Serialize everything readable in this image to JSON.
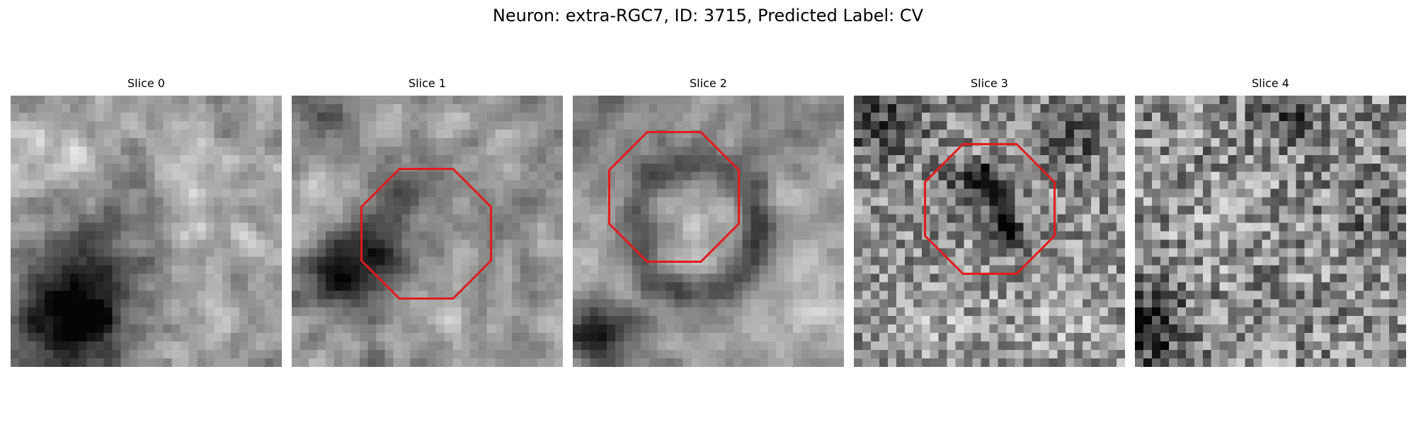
{
  "title": "Neuron: extra-RGC7, ID: 3715, Predicted Label: CV",
  "colormap": "gray",
  "outline_color": "#e41a1c",
  "panels": [
    {
      "title": "Slice 0",
      "has_outline": false,
      "texture": "dark blob lower-left and lower-center, light upper area"
    },
    {
      "title": "Slice 1",
      "has_outline": true,
      "texture": "dark region left-center inside outline, light upper-left"
    },
    {
      "title": "Slice 2",
      "has_outline": true,
      "texture": "dark ring around light center, dark lower-left corner"
    },
    {
      "title": "Slice 3",
      "has_outline": true,
      "texture": "dark diagonal streak inside outline, noisy background"
    },
    {
      "title": "Slice 4",
      "has_outline": false,
      "texture": "uniform noisy gray, dark lower-left"
    }
  ]
}
